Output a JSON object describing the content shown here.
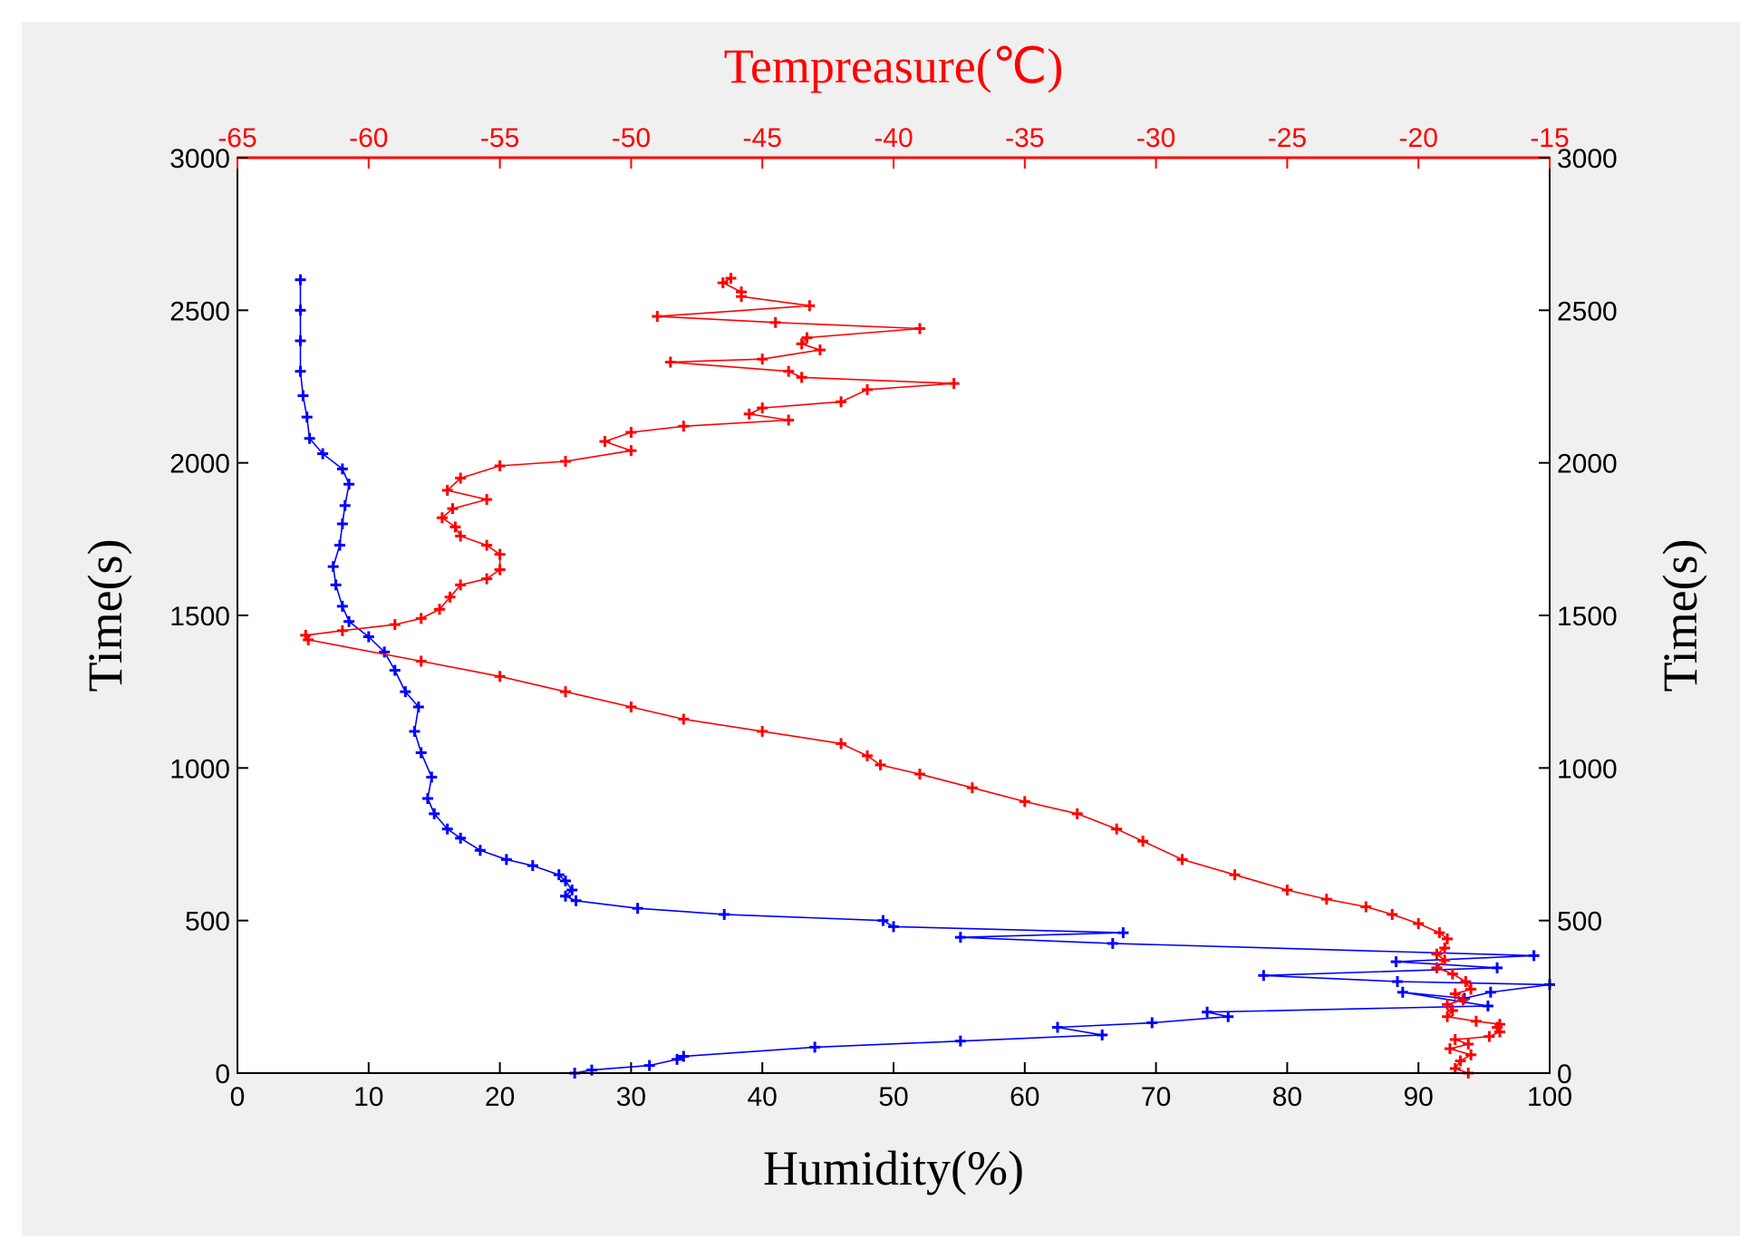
{
  "chart_data": {
    "type": "line",
    "title": "",
    "top_axis": {
      "label": "Tempreasure(℃)",
      "range": [
        -65,
        -15
      ],
      "ticks": [
        "-65",
        "-60",
        "-55",
        "-50",
        "-45",
        "-40",
        "-35",
        "-30",
        "-25",
        "-20",
        "-15"
      ],
      "color": "#ff0000"
    },
    "bottom_axis": {
      "label": "Humidity(%)",
      "range": [
        0,
        100
      ],
      "ticks": [
        "0",
        "10",
        "20",
        "30",
        "40",
        "50",
        "60",
        "70",
        "80",
        "90",
        "100"
      ]
    },
    "left_axis": {
      "label": "Time(s)",
      "range": [
        0,
        3000
      ],
      "ticks": [
        "0",
        "500",
        "1000",
        "1500",
        "2000",
        "2500",
        "3000"
      ]
    },
    "right_axis": {
      "label": "Time(s)",
      "range": [
        0,
        3000
      ],
      "ticks": [
        "0",
        "500",
        "1000",
        "1500",
        "2000",
        "2500",
        "3000"
      ]
    },
    "series": [
      {
        "name": "Humidity",
        "axis": "bottom",
        "color": "#0000ff",
        "points": [
          [
            25.7,
            0
          ],
          [
            27.0,
            10
          ],
          [
            31.4,
            25
          ],
          [
            33.5,
            45
          ],
          [
            34.0,
            55
          ],
          [
            44.0,
            85
          ],
          [
            55.1,
            105
          ],
          [
            65.9,
            125
          ],
          [
            62.5,
            150
          ],
          [
            69.7,
            165
          ],
          [
            75.5,
            185
          ],
          [
            73.9,
            200
          ],
          [
            95.3,
            220
          ],
          [
            88.8,
            265
          ],
          [
            93.5,
            245
          ],
          [
            95.5,
            265
          ],
          [
            100.0,
            290
          ],
          [
            88.4,
            300
          ],
          [
            78.2,
            320
          ],
          [
            96.0,
            345
          ],
          [
            88.3,
            365
          ],
          [
            98.8,
            385
          ],
          [
            66.7,
            425
          ],
          [
            55.1,
            445
          ],
          [
            67.5,
            460
          ],
          [
            50.0,
            480
          ],
          [
            49.2,
            500
          ],
          [
            37.1,
            520
          ],
          [
            30.5,
            540
          ],
          [
            25.8,
            565
          ],
          [
            25.0,
            580
          ],
          [
            25.5,
            600
          ],
          [
            25.0,
            630
          ],
          [
            24.5,
            650
          ],
          [
            22.5,
            680
          ],
          [
            20.5,
            700
          ],
          [
            18.5,
            730
          ],
          [
            17.0,
            770
          ],
          [
            16.0,
            800
          ],
          [
            15.0,
            850
          ],
          [
            14.5,
            900
          ],
          [
            14.8,
            970
          ],
          [
            14.0,
            1050
          ],
          [
            13.5,
            1120
          ],
          [
            13.8,
            1200
          ],
          [
            12.8,
            1250
          ],
          [
            12.0,
            1320
          ],
          [
            11.2,
            1380
          ],
          [
            10.0,
            1430
          ],
          [
            8.5,
            1480
          ],
          [
            8.0,
            1530
          ],
          [
            7.5,
            1600
          ],
          [
            7.3,
            1660
          ],
          [
            7.8,
            1730
          ],
          [
            8.0,
            1800
          ],
          [
            8.2,
            1860
          ],
          [
            8.5,
            1930
          ],
          [
            8.0,
            1980
          ],
          [
            6.5,
            2030
          ],
          [
            5.5,
            2080
          ],
          [
            5.3,
            2150
          ],
          [
            5.0,
            2220
          ],
          [
            4.8,
            2300
          ],
          [
            4.8,
            2400
          ],
          [
            4.8,
            2500
          ],
          [
            4.8,
            2600
          ]
        ]
      },
      {
        "name": "Temperature",
        "axis": "top",
        "color": "#ff0000",
        "points": [
          [
            -18.1,
            0
          ],
          [
            -18.6,
            15
          ],
          [
            -18.4,
            40
          ],
          [
            -18.0,
            60
          ],
          [
            -18.8,
            80
          ],
          [
            -18.1,
            95
          ],
          [
            -18.6,
            110
          ],
          [
            -17.3,
            120
          ],
          [
            -16.9,
            135
          ],
          [
            -17.0,
            150
          ],
          [
            -16.9,
            160
          ],
          [
            -17.8,
            170
          ],
          [
            -18.9,
            185
          ],
          [
            -18.7,
            205
          ],
          [
            -18.9,
            225
          ],
          [
            -18.3,
            240
          ],
          [
            -18.6,
            260
          ],
          [
            -18.0,
            275
          ],
          [
            -18.2,
            300
          ],
          [
            -18.7,
            325
          ],
          [
            -19.3,
            345
          ],
          [
            -19.0,
            370
          ],
          [
            -19.3,
            390
          ],
          [
            -19.0,
            410
          ],
          [
            -18.9,
            440
          ],
          [
            -19.2,
            460
          ],
          [
            -20.0,
            490
          ],
          [
            -21.0,
            520
          ],
          [
            -22.0,
            545
          ],
          [
            -23.5,
            570
          ],
          [
            -25.0,
            600
          ],
          [
            -27.0,
            650
          ],
          [
            -29.0,
            700
          ],
          [
            -30.5,
            760
          ],
          [
            -31.5,
            800
          ],
          [
            -33.0,
            850
          ],
          [
            -35.0,
            890
          ],
          [
            -37.0,
            935
          ],
          [
            -39.0,
            980
          ],
          [
            -40.5,
            1010
          ],
          [
            -41.0,
            1040
          ],
          [
            -42.0,
            1080
          ],
          [
            -45.0,
            1120
          ],
          [
            -48.0,
            1160
          ],
          [
            -50.0,
            1200
          ],
          [
            -52.5,
            1250
          ],
          [
            -55.0,
            1300
          ],
          [
            -58.0,
            1350
          ],
          [
            -62.3,
            1420
          ],
          [
            -62.4,
            1435
          ],
          [
            -61.0,
            1450
          ],
          [
            -59.0,
            1470
          ],
          [
            -58.0,
            1490
          ],
          [
            -57.3,
            1520
          ],
          [
            -56.9,
            1560
          ],
          [
            -56.5,
            1600
          ],
          [
            -55.5,
            1620
          ],
          [
            -55.0,
            1650
          ],
          [
            -55.0,
            1700
          ],
          [
            -55.5,
            1730
          ],
          [
            -56.5,
            1760
          ],
          [
            -56.7,
            1790
          ],
          [
            -57.2,
            1820
          ],
          [
            -56.8,
            1850
          ],
          [
            -55.5,
            1880
          ],
          [
            -57.0,
            1910
          ],
          [
            -56.5,
            1950
          ],
          [
            -55.0,
            1990
          ],
          [
            -52.5,
            2005
          ],
          [
            -50.0,
            2040
          ],
          [
            -51.0,
            2070
          ],
          [
            -50.0,
            2100
          ],
          [
            -48.0,
            2120
          ],
          [
            -44.0,
            2140
          ],
          [
            -45.5,
            2160
          ],
          [
            -45.0,
            2180
          ],
          [
            -42.0,
            2200
          ],
          [
            -41.0,
            2240
          ],
          [
            -37.7,
            2260
          ],
          [
            -43.5,
            2280
          ],
          [
            -44.0,
            2300
          ],
          [
            -48.5,
            2330
          ],
          [
            -45.0,
            2340
          ],
          [
            -42.8,
            2370
          ],
          [
            -43.5,
            2390
          ],
          [
            -43.3,
            2410
          ],
          [
            -39.0,
            2440
          ],
          [
            -44.5,
            2460
          ],
          [
            -49.0,
            2480
          ],
          [
            -43.2,
            2515
          ],
          [
            -45.8,
            2545
          ],
          [
            -45.8,
            2560
          ],
          [
            -46.5,
            2590
          ],
          [
            -46.2,
            2605
          ]
        ]
      }
    ]
  }
}
